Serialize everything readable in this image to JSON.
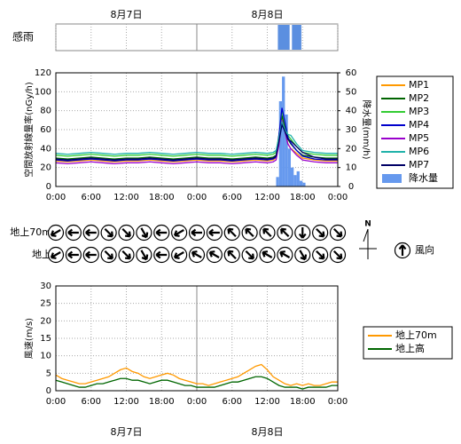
{
  "chart_data": [
    {
      "type": "timeline",
      "label": "感雨",
      "xlim": [
        0,
        48
      ],
      "xticks": [
        0,
        6,
        12,
        18,
        24,
        30,
        36,
        42,
        48
      ],
      "color": "#5b8fe0",
      "date_labels": [
        {
          "value": 12,
          "label": "8月7日"
        },
        {
          "value": 36,
          "label": "8月8日"
        }
      ],
      "intervals": [
        [
          37.8,
          39.8
        ],
        [
          40.2,
          41.8
        ]
      ]
    },
    {
      "type": "line",
      "ylabel": "空間放射線量率(nGy/h)",
      "y2label": "降水量(mm/h)",
      "grid": true,
      "legend_position": "right",
      "xlim": [
        0,
        48
      ],
      "xticks": [
        {
          "value": 0,
          "label": "0:00"
        },
        {
          "value": 6,
          "label": "6:00"
        },
        {
          "value": 12,
          "label": "12:00"
        },
        {
          "value": 18,
          "label": "18:00"
        },
        {
          "value": 24,
          "label": "0:00"
        },
        {
          "value": 30,
          "label": "6:00"
        },
        {
          "value": 36,
          "label": "12:00"
        },
        {
          "value": 42,
          "label": "18:00"
        },
        {
          "value": 48,
          "label": "0:00"
        }
      ],
      "ylim": [
        0,
        120
      ],
      "yticks": [
        0,
        20,
        40,
        60,
        80,
        100,
        120
      ],
      "y2lim": [
        0,
        60
      ],
      "y2ticks": [
        0,
        10,
        20,
        30,
        40,
        50,
        60
      ],
      "x": [
        0,
        2,
        4,
        6,
        8,
        10,
        12,
        14,
        16,
        18,
        20,
        22,
        24,
        26,
        28,
        30,
        32,
        34,
        36,
        37,
        37.5,
        38,
        38.5,
        39,
        39.5,
        40,
        41,
        42,
        44,
        46,
        48
      ],
      "series": [
        {
          "name": "MP1",
          "color": "#ff9900",
          "values": [
            27,
            26,
            27,
            28,
            27,
            26,
            27,
            27,
            28,
            27,
            26,
            27,
            28,
            27,
            27,
            26,
            27,
            28,
            27,
            28,
            30,
            45,
            72,
            60,
            45,
            40,
            35,
            30,
            28,
            27,
            27
          ]
        },
        {
          "name": "MP2",
          "color": "#006400",
          "values": [
            30,
            29,
            30,
            31,
            30,
            29,
            30,
            30,
            31,
            30,
            29,
            30,
            31,
            30,
            30,
            29,
            30,
            31,
            30,
            31,
            33,
            50,
            75,
            62,
            50,
            45,
            38,
            33,
            31,
            30,
            30
          ]
        },
        {
          "name": "MP3",
          "color": "#33cc33",
          "values": [
            33,
            32,
            33,
            34,
            33,
            32,
            33,
            33,
            34,
            33,
            32,
            33,
            34,
            33,
            33,
            32,
            33,
            34,
            33,
            34,
            36,
            55,
            80,
            66,
            54,
            50,
            42,
            36,
            34,
            33,
            33
          ]
        },
        {
          "name": "MP4",
          "color": "#0000cc",
          "values": [
            28,
            27,
            28,
            29,
            28,
            27,
            28,
            28,
            29,
            28,
            27,
            28,
            29,
            28,
            28,
            27,
            28,
            29,
            28,
            29,
            31,
            55,
            83,
            68,
            52,
            46,
            38,
            32,
            29,
            28,
            28
          ]
        },
        {
          "name": "MP5",
          "color": "#9900cc",
          "values": [
            25,
            24,
            25,
            26,
            25,
            24,
            25,
            25,
            26,
            25,
            24,
            25,
            26,
            25,
            25,
            24,
            25,
            26,
            25,
            26,
            28,
            45,
            70,
            58,
            45,
            40,
            33,
            28,
            26,
            25,
            25
          ]
        },
        {
          "name": "MP6",
          "color": "#20b2aa",
          "values": [
            35,
            34,
            35,
            36,
            35,
            34,
            35,
            35,
            36,
            35,
            34,
            35,
            36,
            35,
            35,
            34,
            35,
            36,
            35,
            36,
            38,
            52,
            68,
            60,
            55,
            54,
            45,
            38,
            36,
            35,
            35
          ]
        },
        {
          "name": "MP7",
          "color": "#000066",
          "values": [
            29,
            28,
            29,
            30,
            29,
            28,
            29,
            29,
            30,
            29,
            28,
            29,
            30,
            29,
            29,
            28,
            29,
            30,
            29,
            30,
            32,
            48,
            65,
            58,
            50,
            48,
            42,
            36,
            31,
            29,
            29
          ]
        },
        {
          "name": "降水量",
          "color": "#6699ee",
          "type": "bar",
          "axis": "y2",
          "x": [
            37.5,
            38,
            38.5,
            39,
            39.5,
            40,
            40.5,
            41,
            41.5,
            42
          ],
          "values": [
            5,
            45,
            58,
            38,
            20,
            10,
            6,
            8,
            3,
            2
          ]
        }
      ]
    },
    {
      "type": "wind_direction",
      "xlim": [
        0,
        48
      ],
      "legend_label": "風向",
      "north_label": "N",
      "x": [
        0,
        3,
        6,
        9,
        12,
        15,
        18,
        21,
        24,
        27,
        30,
        33,
        36,
        39,
        42,
        45,
        48
      ],
      "rows": [
        {
          "name": "地上70m",
          "values": [
            240,
            270,
            270,
            135,
            135,
            150,
            270,
            240,
            270,
            270,
            315,
            315,
            315,
            315,
            180,
            135,
            135
          ]
        },
        {
          "name": "地上",
          "values": [
            240,
            270,
            270,
            135,
            135,
            150,
            270,
            240,
            300,
            300,
            315,
            135,
            300,
            300,
            150,
            135,
            135
          ]
        }
      ]
    },
    {
      "type": "line",
      "ylabel": "風速(m/s)",
      "grid": true,
      "legend_position": "right",
      "xlim": [
        0,
        48
      ],
      "xticks": [
        {
          "value": 0,
          "label": "0:00"
        },
        {
          "value": 6,
          "label": "6:00"
        },
        {
          "value": 12,
          "label": "12:00"
        },
        {
          "value": 18,
          "label": "18:00"
        },
        {
          "value": 24,
          "label": "0:00"
        },
        {
          "value": 30,
          "label": "6:00"
        },
        {
          "value": 36,
          "label": "12:00"
        },
        {
          "value": 42,
          "label": "18:00"
        },
        {
          "value": 48,
          "label": "0:00"
        }
      ],
      "ylim": [
        0,
        30
      ],
      "yticks": [
        0,
        5,
        10,
        15,
        20,
        25,
        30
      ],
      "date_labels": [
        {
          "value": 12,
          "label": "8月7日"
        },
        {
          "value": 36,
          "label": "8月8日"
        }
      ],
      "x": [
        0,
        1,
        2,
        3,
        4,
        5,
        6,
        7,
        8,
        9,
        10,
        11,
        12,
        13,
        14,
        15,
        16,
        17,
        18,
        19,
        20,
        21,
        22,
        23,
        24,
        25,
        26,
        27,
        28,
        29,
        30,
        31,
        32,
        33,
        34,
        35,
        36,
        37,
        38,
        39,
        40,
        41,
        42,
        43,
        44,
        45,
        46,
        47,
        48
      ],
      "series": [
        {
          "name": "地上70m",
          "color": "#ff9900",
          "values": [
            4.5,
            3.5,
            3,
            2.5,
            2,
            2,
            2.5,
            3,
            3.5,
            4,
            5,
            6,
            6.5,
            5.5,
            5,
            4,
            3.5,
            4,
            4.5,
            5,
            4.5,
            3.5,
            3,
            2.5,
            2,
            2,
            1.5,
            2,
            2.5,
            3,
            3.5,
            4,
            5,
            6,
            7,
            7.5,
            6,
            4,
            3,
            2,
            1.5,
            2,
            1.5,
            2,
            1.5,
            1.5,
            2,
            2.5,
            2.5
          ]
        },
        {
          "name": "地上高",
          "color": "#006600",
          "values": [
            3,
            2.5,
            2,
            1.5,
            1,
            1,
            1.5,
            2,
            2,
            2.5,
            3,
            3.5,
            3.5,
            3,
            3,
            2.5,
            2,
            2.5,
            3,
            3,
            2.5,
            2,
            1.5,
            1.5,
            1,
            1,
            1,
            1,
            1.5,
            2,
            2.5,
            2.5,
            3,
            3.5,
            4,
            4,
            3.5,
            2.5,
            1.5,
            1,
            1,
            1,
            0.5,
            1,
            1,
            1,
            1,
            1.5,
            1.5
          ]
        }
      ]
    }
  ]
}
